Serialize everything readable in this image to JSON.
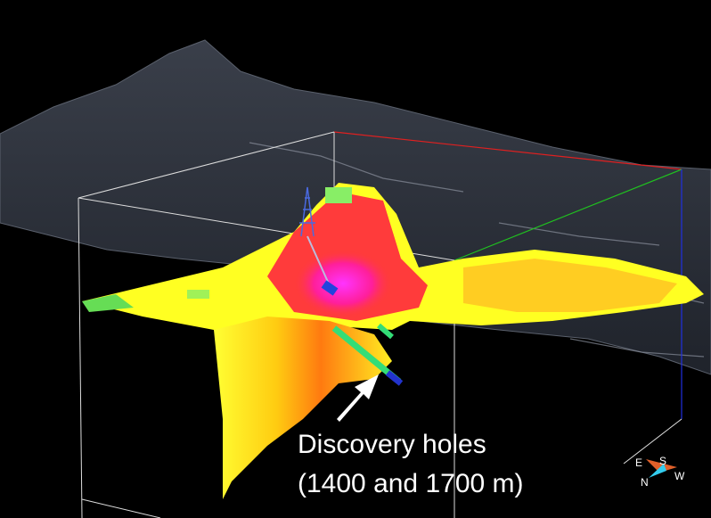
{
  "annotation": {
    "lines": [
      "Discovery holes",
      "(1400 and 1700 m)"
    ]
  },
  "compass": {
    "east": "E",
    "south": "S",
    "north": "N",
    "west": "W"
  }
}
